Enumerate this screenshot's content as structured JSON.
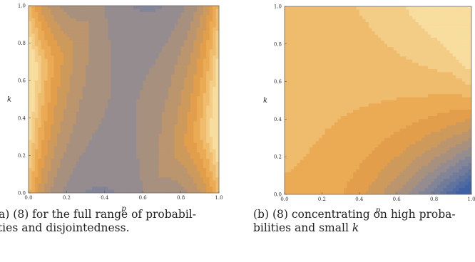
{
  "chart_data": [
    {
      "type": "heatmap",
      "subtype": "contour",
      "xlabel": "p",
      "ylabel": "k",
      "xlim": [
        0.0,
        1.0
      ],
      "ylim": [
        0.0,
        1.0
      ],
      "xticks": [
        "0.0",
        "0.2",
        "0.4",
        "0.6",
        "0.8",
        "1.0"
      ],
      "yticks": [
        "0.0",
        "0.2",
        "0.4",
        "0.6",
        "0.8",
        "1.0"
      ],
      "colormap": [
        "#3e61a3",
        "#8d8a95",
        "#e8a044",
        "#fbedb7"
      ],
      "caption": {
        "label": "(a)",
        "line1": "(8) for the full range of probabil-",
        "line2": "ities and disjointedness."
      }
    },
    {
      "type": "heatmap",
      "subtype": "contour",
      "xlabel": "p",
      "ylabel": "k",
      "xlim": [
        0.0,
        1.0
      ],
      "ylim": [
        0.0,
        1.0
      ],
      "xticks": [
        "0.0",
        "0.2",
        "0.4",
        "0.6",
        "0.8",
        "1.0"
      ],
      "yticks": [
        "0.0",
        "0.2",
        "0.4",
        "0.6",
        "0.8",
        "1.0"
      ],
      "colormap": [
        "#3e61a3",
        "#8d8a95",
        "#e8a044",
        "#fbedb7"
      ],
      "caption": {
        "label": "(b)",
        "line1": "(8) concentrating on high proba-",
        "line2_prefix": "bilities and small ",
        "line2_var": "k"
      }
    }
  ]
}
